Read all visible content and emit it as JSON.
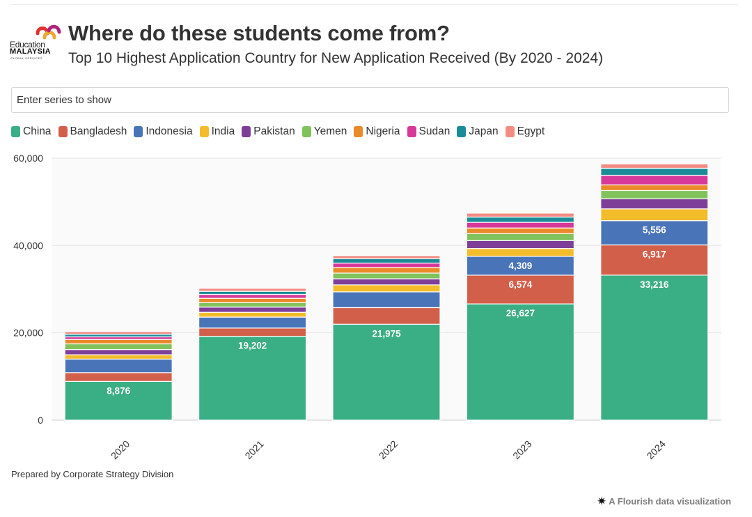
{
  "header": {
    "logo": {
      "line1": "Education",
      "line2": "MALAYSIA",
      "line3": "GLOBAL SERVICES"
    },
    "title": "Where do these students come from?",
    "subtitle": "Top 10 Highest Application Country for New Application Received (By 2020 - 2024)"
  },
  "filter": {
    "placeholder": "Enter series to show"
  },
  "legend": [
    {
      "name": "China",
      "color": "#3aae84"
    },
    {
      "name": "Bangladesh",
      "color": "#d25f4a"
    },
    {
      "name": "Indonesia",
      "color": "#4a74b8"
    },
    {
      "name": "India",
      "color": "#f2bc2b"
    },
    {
      "name": "Pakistan",
      "color": "#7d3f98"
    },
    {
      "name": "Yemen",
      "color": "#82c25d"
    },
    {
      "name": "Nigeria",
      "color": "#ea8a29"
    },
    {
      "name": "Sudan",
      "color": "#d6399a"
    },
    {
      "name": "Japan",
      "color": "#1b8c97"
    },
    {
      "name": "Egypt",
      "color": "#f28b82"
    }
  ],
  "chart_data": {
    "type": "bar",
    "stacked": true,
    "categories": [
      "2020",
      "2021",
      "2022",
      "2023",
      "2024"
    ],
    "ylim": [
      0,
      60000
    ],
    "yticks": [
      0,
      20000,
      40000,
      60000
    ],
    "ytick_labels": [
      "0",
      "20,000",
      "40,000",
      "60,000"
    ],
    "grid": true,
    "legend_position": "top-left",
    "series": [
      {
        "name": "China",
        "color": "#3aae84",
        "values": [
          8876,
          19202,
          21975,
          26627,
          33216
        ],
        "labels": [
          "8,876",
          "19,202",
          "21,975",
          "26,627",
          "33,216"
        ]
      },
      {
        "name": "Bangladesh",
        "color": "#d25f4a",
        "values": [
          2000,
          1900,
          3800,
          6574,
          6917
        ],
        "labels": [
          "",
          "",
          "",
          "6,574",
          "6,917"
        ]
      },
      {
        "name": "Indonesia",
        "color": "#4a74b8",
        "values": [
          3100,
          2500,
          3600,
          4309,
          5556
        ],
        "labels": [
          "",
          "",
          "",
          "4,309",
          "5,556"
        ]
      },
      {
        "name": "India",
        "color": "#f2bc2b",
        "values": [
          1000,
          1100,
          1600,
          1800,
          2700
        ],
        "labels": [
          "",
          "",
          "",
          "",
          ""
        ]
      },
      {
        "name": "Pakistan",
        "color": "#7d3f98",
        "values": [
          1200,
          1200,
          1400,
          1800,
          2300
        ],
        "labels": [
          "",
          "",
          "",
          "",
          ""
        ]
      },
      {
        "name": "Yemen",
        "color": "#82c25d",
        "values": [
          1300,
          1000,
          1300,
          1600,
          1900
        ],
        "labels": [
          "",
          "",
          "",
          "",
          ""
        ]
      },
      {
        "name": "Nigeria",
        "color": "#ea8a29",
        "values": [
          1000,
          1000,
          1300,
          1300,
          1300
        ],
        "labels": [
          "",
          "",
          "",
          "",
          ""
        ]
      },
      {
        "name": "Sudan",
        "color": "#d6399a",
        "values": [
          600,
          900,
          1000,
          1300,
          2200
        ],
        "labels": [
          "",
          "",
          "",
          "",
          ""
        ]
      },
      {
        "name": "Japan",
        "color": "#1b8c97",
        "values": [
          600,
          700,
          1000,
          1200,
          1600
        ],
        "labels": [
          "",
          "",
          "",
          "",
          ""
        ]
      },
      {
        "name": "Egypt",
        "color": "#f28b82",
        "values": [
          600,
          700,
          700,
          900,
          1000
        ],
        "labels": [
          "",
          "",
          "",
          "",
          ""
        ]
      }
    ]
  },
  "footer": {
    "credit": "Prepared by Corporate Strategy Division",
    "flourish": "A Flourish data visualization",
    "flourish_icon": "asterisk-icon"
  }
}
